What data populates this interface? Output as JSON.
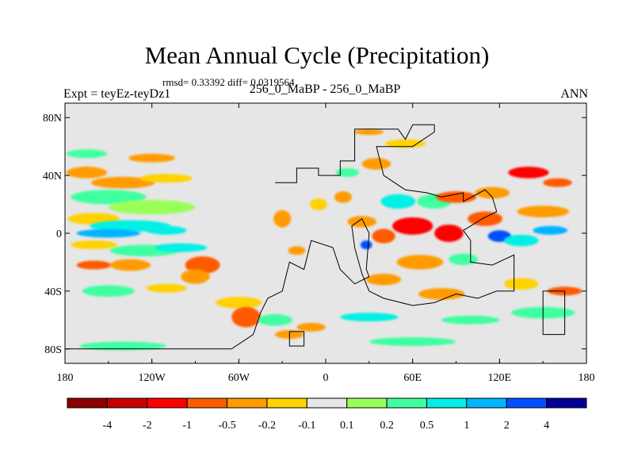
{
  "chart_data": {
    "type": "heatmap",
    "title": "Mean Annual Cycle (Precipitation)",
    "stats_text": "rmsd= 0.33392  diff= 0.0319564",
    "left_label": "Expt = teyEz-teyDz1",
    "center_label": "256_0_MaBP - 256_0_MaBP",
    "right_label": "ANN",
    "x_axis": {
      "range": [
        -180,
        180
      ],
      "ticks": [
        {
          "value": -180,
          "label": "180"
        },
        {
          "value": -120,
          "label": "120W"
        },
        {
          "value": -60,
          "label": "60W"
        },
        {
          "value": 0,
          "label": "0"
        },
        {
          "value": 60,
          "label": "60E"
        },
        {
          "value": 120,
          "label": "120E"
        },
        {
          "value": 180,
          "label": "180"
        }
      ]
    },
    "y_axis": {
      "range": [
        -90,
        90
      ],
      "ticks": [
        {
          "value": 80,
          "label": "80N"
        },
        {
          "value": 40,
          "label": "40N"
        },
        {
          "value": 0,
          "label": "0"
        },
        {
          "value": -40,
          "label": "40S"
        },
        {
          "value": -80,
          "label": "80S"
        }
      ]
    },
    "colorbar": {
      "colors": [
        "#8b0000",
        "#c80000",
        "#ff0000",
        "#ff5a00",
        "#ff9b00",
        "#ffd200",
        "#e6e6e6",
        "#9bff5a",
        "#40ffa0",
        "#00f0e6",
        "#00b4ff",
        "#0050ff",
        "#000096"
      ],
      "labels": [
        "-4",
        "-2",
        "-1",
        "-0.5",
        "-0.2",
        "-0.1",
        "0.1",
        "0.2",
        "0.5",
        "1",
        "2",
        "4"
      ]
    },
    "anomaly_regions": [
      {
        "lon": -165,
        "lat": 42,
        "rlon": 14,
        "rlat": 4,
        "level": 4
      },
      {
        "lon": -140,
        "lat": 35,
        "rlon": 22,
        "rlat": 4,
        "level": 4
      },
      {
        "lon": -110,
        "lat": 38,
        "rlon": 18,
        "rlat": 3,
        "level": 5
      },
      {
        "lon": -150,
        "lat": 25,
        "rlon": 26,
        "rlat": 5,
        "level": 8
      },
      {
        "lon": -120,
        "lat": 18,
        "rlon": 30,
        "rlat": 5,
        "level": 7
      },
      {
        "lon": -160,
        "lat": 10,
        "rlon": 18,
        "rlat": 4,
        "level": 5
      },
      {
        "lon": -135,
        "lat": 5,
        "rlon": 28,
        "rlat": 4,
        "level": 9
      },
      {
        "lon": -150,
        "lat": 0,
        "rlon": 22,
        "rlat": 3,
        "level": 10
      },
      {
        "lon": -110,
        "lat": 2,
        "rlon": 14,
        "rlat": 3,
        "level": 9
      },
      {
        "lon": -160,
        "lat": -8,
        "rlon": 16,
        "rlat": 3,
        "level": 5
      },
      {
        "lon": -125,
        "lat": -12,
        "rlon": 24,
        "rlat": 4,
        "level": 8
      },
      {
        "lon": -100,
        "lat": -10,
        "rlon": 18,
        "rlat": 3,
        "level": 9
      },
      {
        "lon": -160,
        "lat": -22,
        "rlon": 12,
        "rlat": 3,
        "level": 3
      },
      {
        "lon": -135,
        "lat": -22,
        "rlon": 14,
        "rlat": 4,
        "level": 4
      },
      {
        "lon": -85,
        "lat": -22,
        "rlon": 12,
        "rlat": 6,
        "level": 3
      },
      {
        "lon": -90,
        "lat": -30,
        "rlon": 10,
        "rlat": 5,
        "level": 4
      },
      {
        "lon": -150,
        "lat": -40,
        "rlon": 18,
        "rlat": 4,
        "level": 8
      },
      {
        "lon": -110,
        "lat": -38,
        "rlon": 14,
        "rlat": 3,
        "level": 5
      },
      {
        "lon": -60,
        "lat": -48,
        "rlon": 16,
        "rlat": 4,
        "level": 5
      },
      {
        "lon": -55,
        "lat": -58,
        "rlon": 10,
        "rlat": 7,
        "level": 3
      },
      {
        "lon": -35,
        "lat": -60,
        "rlon": 12,
        "rlat": 4,
        "level": 8
      },
      {
        "lon": -25,
        "lat": -70,
        "rlon": 10,
        "rlat": 3,
        "level": 4
      },
      {
        "lon": -140,
        "lat": -78,
        "rlon": 30,
        "rlat": 3,
        "level": 8
      },
      {
        "lon": -20,
        "lat": -12,
        "rlon": 6,
        "rlat": 3,
        "level": 4
      },
      {
        "lon": -30,
        "lat": 10,
        "rlon": 6,
        "rlat": 6,
        "level": 4
      },
      {
        "lon": -5,
        "lat": 20,
        "rlon": 6,
        "rlat": 4,
        "level": 5
      },
      {
        "lon": 12,
        "lat": 25,
        "rlon": 6,
        "rlat": 4,
        "level": 4
      },
      {
        "lon": 15,
        "lat": 42,
        "rlon": 8,
        "rlat": 3,
        "level": 8
      },
      {
        "lon": 35,
        "lat": 48,
        "rlon": 10,
        "rlat": 4,
        "level": 4
      },
      {
        "lon": 55,
        "lat": 62,
        "rlon": 14,
        "rlat": 3,
        "level": 5
      },
      {
        "lon": 30,
        "lat": 70,
        "rlon": 10,
        "rlat": 2,
        "level": 4
      },
      {
        "lon": 25,
        "lat": 8,
        "rlon": 10,
        "rlat": 4,
        "level": 4
      },
      {
        "lon": 50,
        "lat": 22,
        "rlon": 12,
        "rlat": 5,
        "level": 9
      },
      {
        "lon": 75,
        "lat": 22,
        "rlon": 12,
        "rlat": 5,
        "level": 8
      },
      {
        "lon": 90,
        "lat": 25,
        "rlon": 14,
        "rlat": 4,
        "level": 3
      },
      {
        "lon": 115,
        "lat": 28,
        "rlon": 12,
        "rlat": 4,
        "level": 4
      },
      {
        "lon": 140,
        "lat": 42,
        "rlon": 14,
        "rlat": 4,
        "level": 2
      },
      {
        "lon": 160,
        "lat": 35,
        "rlon": 10,
        "rlat": 3,
        "level": 3
      },
      {
        "lon": 150,
        "lat": 15,
        "rlon": 18,
        "rlat": 4,
        "level": 4
      },
      {
        "lon": 110,
        "lat": 10,
        "rlon": 12,
        "rlat": 5,
        "level": 3
      },
      {
        "lon": 60,
        "lat": 5,
        "rlon": 14,
        "rlat": 6,
        "level": 2
      },
      {
        "lon": 85,
        "lat": 0,
        "rlon": 10,
        "rlat": 6,
        "level": 2
      },
      {
        "lon": 40,
        "lat": -2,
        "rlon": 8,
        "rlat": 5,
        "level": 3
      },
      {
        "lon": 28,
        "lat": -8,
        "rlon": 4,
        "rlat": 3,
        "level": 11
      },
      {
        "lon": 120,
        "lat": -2,
        "rlon": 8,
        "rlat": 4,
        "level": 11
      },
      {
        "lon": 135,
        "lat": -5,
        "rlon": 12,
        "rlat": 4,
        "level": 9
      },
      {
        "lon": 155,
        "lat": 2,
        "rlon": 12,
        "rlat": 3,
        "level": 10
      },
      {
        "lon": 65,
        "lat": -20,
        "rlon": 16,
        "rlat": 5,
        "level": 4
      },
      {
        "lon": 95,
        "lat": -18,
        "rlon": 10,
        "rlat": 4,
        "level": 8
      },
      {
        "lon": 40,
        "lat": -32,
        "rlon": 12,
        "rlat": 4,
        "level": 4
      },
      {
        "lon": 80,
        "lat": -42,
        "rlon": 16,
        "rlat": 4,
        "level": 4
      },
      {
        "lon": 135,
        "lat": -35,
        "rlon": 12,
        "rlat": 4,
        "level": 5
      },
      {
        "lon": 165,
        "lat": -40,
        "rlon": 12,
        "rlat": 3,
        "level": 3
      },
      {
        "lon": 150,
        "lat": -55,
        "rlon": 22,
        "rlat": 4,
        "level": 8
      },
      {
        "lon": 100,
        "lat": -60,
        "rlon": 20,
        "rlat": 3,
        "level": 8
      },
      {
        "lon": 30,
        "lat": -58,
        "rlon": 20,
        "rlat": 3,
        "level": 9
      },
      {
        "lon": 60,
        "lat": -75,
        "rlon": 30,
        "rlat": 3,
        "level": 8
      },
      {
        "lon": -10,
        "lat": -65,
        "rlon": 10,
        "rlat": 3,
        "level": 4
      },
      {
        "lon": -165,
        "lat": 55,
        "rlon": 14,
        "rlat": 3,
        "level": 8
      },
      {
        "lon": -120,
        "lat": 52,
        "rlon": 16,
        "rlat": 3,
        "level": 4
      }
    ],
    "continent_outline": [
      [
        -35,
        35
      ],
      [
        -20,
        35
      ],
      [
        -20,
        45
      ],
      [
        -5,
        45
      ],
      [
        -5,
        40
      ],
      [
        10,
        40
      ],
      [
        10,
        50
      ],
      [
        20,
        50
      ],
      [
        20,
        60
      ],
      [
        20,
        72
      ],
      [
        50,
        72
      ],
      [
        55,
        65
      ],
      [
        60,
        75
      ],
      [
        75,
        75
      ],
      [
        75,
        70
      ],
      [
        60,
        60
      ],
      [
        35,
        60
      ],
      [
        40,
        40
      ],
      [
        55,
        30
      ],
      [
        70,
        28
      ],
      [
        80,
        25
      ],
      [
        95,
        28
      ],
      [
        95,
        22
      ],
      [
        110,
        30
      ],
      [
        115,
        25
      ],
      [
        118,
        15
      ],
      [
        108,
        10
      ],
      [
        100,
        5
      ],
      [
        95,
        2
      ],
      [
        100,
        -5
      ],
      [
        100,
        -20
      ],
      [
        115,
        -22
      ],
      [
        130,
        -15
      ],
      [
        130,
        -40
      ],
      [
        118,
        -40
      ],
      [
        105,
        -45
      ],
      [
        90,
        -42
      ],
      [
        75,
        -48
      ],
      [
        60,
        -50
      ],
      [
        40,
        -45
      ],
      [
        30,
        -40
      ],
      [
        25,
        -28
      ],
      [
        20,
        -10
      ],
      [
        18,
        5
      ],
      [
        25,
        10
      ],
      [
        30,
        0
      ],
      [
        28,
        -25
      ],
      [
        30,
        -30
      ],
      [
        20,
        -35
      ],
      [
        10,
        -25
      ],
      [
        5,
        -10
      ],
      [
        -10,
        -5
      ],
      [
        -15,
        -25
      ],
      [
        -25,
        -20
      ],
      [
        -30,
        -40
      ],
      [
        -40,
        -45
      ],
      [
        -45,
        -55
      ],
      [
        -50,
        -70
      ],
      [
        -65,
        -80
      ],
      [
        -180,
        -80
      ]
    ],
    "island_outlines": [
      [
        [
          -25,
          -68
        ],
        [
          -15,
          -68
        ],
        [
          -15,
          -78
        ],
        [
          -25,
          -78
        ]
      ],
      [
        [
          150,
          -40
        ],
        [
          165,
          -40
        ],
        [
          165,
          -70
        ],
        [
          150,
          -70
        ]
      ]
    ]
  }
}
